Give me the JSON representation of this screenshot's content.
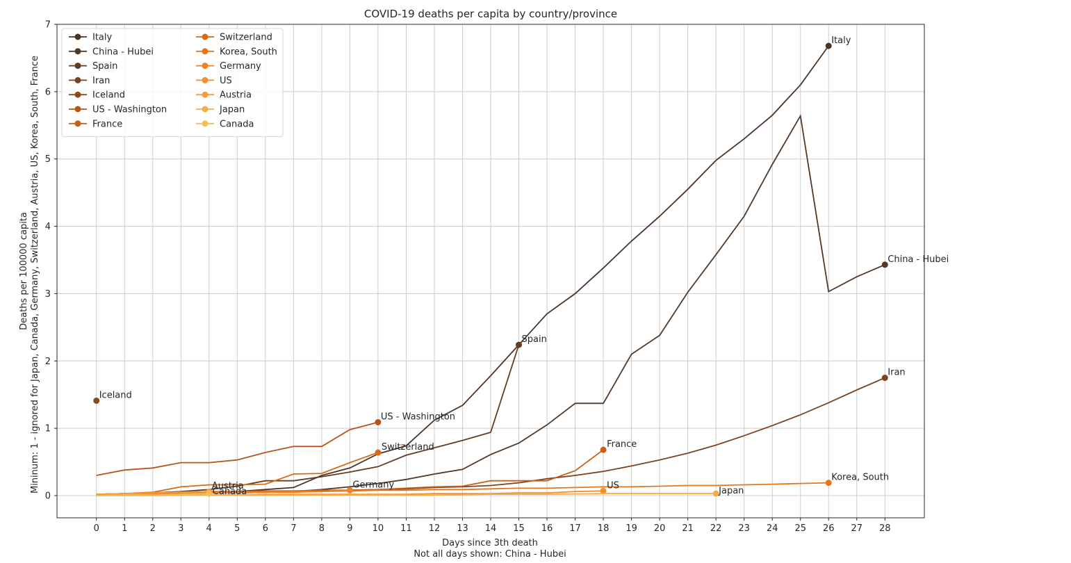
{
  "chart_data": {
    "type": "line",
    "title": "COVID-19 deaths per capita by country/province",
    "xlabel": "Days since 3th death",
    "xlabel_note": "Not all days shown: China - Hubei",
    "ylabel": "Deaths per 100000 capita",
    "ylabel_note": "Mininum: 1 - ignored for Japan, Canada, Germany, Switzerland, Austria, US, Korea, South, France",
    "xlim": [
      -1.4,
      29.4
    ],
    "ylim": [
      -0.33,
      7
    ],
    "xticks": [
      0,
      1,
      2,
      3,
      4,
      5,
      6,
      7,
      8,
      9,
      10,
      11,
      12,
      13,
      14,
      15,
      16,
      17,
      18,
      19,
      20,
      21,
      22,
      23,
      24,
      25,
      26,
      27,
      28
    ],
    "yticks": [
      0,
      1,
      2,
      3,
      4,
      5,
      6,
      7
    ],
    "grid": true,
    "legend_position": "top-left",
    "legend_columns": 2,
    "series": [
      {
        "name": "Italy",
        "color": "#4a3426",
        "x": [
          0,
          1,
          2,
          3,
          4,
          5,
          6,
          7,
          8,
          9,
          10,
          11,
          12,
          13,
          14,
          15,
          16,
          17,
          18,
          19,
          20,
          21,
          22,
          23,
          24,
          25,
          26
        ],
        "y": [
          0.01,
          0.02,
          0.03,
          0.04,
          0.05,
          0.06,
          0.09,
          0.12,
          0.3,
          0.41,
          0.62,
          0.74,
          1.12,
          1.34,
          1.78,
          2.24,
          2.7,
          3.0,
          3.38,
          3.78,
          4.15,
          4.55,
          4.98,
          5.3,
          5.65,
          6.1,
          6.68
        ],
        "label": "Italy"
      },
      {
        "name": "China - Hubei",
        "color": "#523827",
        "x": [
          0,
          1,
          2,
          3,
          4,
          5,
          6,
          7,
          8,
          9,
          10,
          11,
          12,
          13,
          14,
          15,
          16,
          17,
          18,
          19,
          20,
          21,
          22,
          23,
          24,
          25,
          26,
          27,
          28
        ],
        "y": [
          0.0,
          0.01,
          0.02,
          0.03,
          0.04,
          0.05,
          0.05,
          0.06,
          0.09,
          0.13,
          0.18,
          0.24,
          0.32,
          0.39,
          0.61,
          0.78,
          1.05,
          1.37,
          1.37,
          2.1,
          2.38,
          3.02,
          3.58,
          4.15,
          4.92,
          5.64,
          3.03,
          3.25,
          3.43
        ],
        "label": "China - Hubei"
      },
      {
        "name": "Spain",
        "color": "#623c24",
        "x": [
          0,
          1,
          2,
          3,
          4,
          5,
          6,
          7,
          8,
          9,
          10,
          11,
          12,
          13,
          14,
          15
        ],
        "y": [
          0.02,
          0.03,
          0.04,
          0.06,
          0.09,
          0.14,
          0.22,
          0.22,
          0.28,
          0.35,
          0.43,
          0.6,
          0.71,
          0.82,
          0.94,
          2.24
        ],
        "label": "Spain"
      },
      {
        "name": "Iran",
        "color": "#7a4321",
        "x": [
          0,
          1,
          2,
          3,
          4,
          5,
          6,
          7,
          8,
          9,
          10,
          11,
          12,
          13,
          14,
          15,
          16,
          17,
          18,
          19,
          20,
          21,
          22,
          23,
          24,
          25,
          26,
          27,
          28
        ],
        "y": [
          0.01,
          0.02,
          0.02,
          0.03,
          0.04,
          0.04,
          0.05,
          0.06,
          0.07,
          0.08,
          0.09,
          0.1,
          0.12,
          0.13,
          0.15,
          0.19,
          0.25,
          0.3,
          0.36,
          0.44,
          0.53,
          0.63,
          0.75,
          0.89,
          1.04,
          1.2,
          1.38,
          1.57,
          1.75
        ],
        "label": "Iran"
      },
      {
        "name": "Iceland",
        "color": "#8a4a1e",
        "x": [
          0
        ],
        "y": [
          1.41
        ],
        "label": "Iceland"
      },
      {
        "name": "US - Washington",
        "color": "#b85418",
        "x": [
          0,
          1,
          2,
          3,
          4,
          5,
          6,
          7,
          8,
          9,
          10
        ],
        "y": [
          0.3,
          0.38,
          0.41,
          0.49,
          0.49,
          0.53,
          0.64,
          0.73,
          0.73,
          0.98,
          1.09
        ],
        "label": "US - Washington"
      },
      {
        "name": "France",
        "color": "#c85f16",
        "x": [
          0,
          1,
          2,
          3,
          4,
          5,
          6,
          7,
          8,
          9,
          10,
          11,
          12,
          13,
          14,
          15,
          16,
          17,
          18
        ],
        "y": [
          0.02,
          0.03,
          0.04,
          0.05,
          0.06,
          0.06,
          0.07,
          0.07,
          0.08,
          0.08,
          0.09,
          0.11,
          0.13,
          0.14,
          0.22,
          0.22,
          0.22,
          0.37,
          0.68
        ],
        "label": "France"
      },
      {
        "name": "Switzerland",
        "color": "#d96a14",
        "x": [
          0,
          1,
          2,
          3,
          4,
          5,
          6,
          7,
          8,
          9,
          10
        ],
        "y": [
          0.02,
          0.03,
          0.05,
          0.13,
          0.16,
          0.16,
          0.17,
          0.32,
          0.33,
          0.49,
          0.64
        ],
        "label": "Switzerland"
      },
      {
        "name": "Korea, South",
        "color": "#e4771e",
        "x": [
          0,
          1,
          2,
          3,
          4,
          5,
          6,
          7,
          8,
          9,
          10,
          11,
          12,
          13,
          14,
          15,
          16,
          17,
          18,
          19,
          20,
          21,
          22,
          23,
          24,
          25,
          26
        ],
        "y": [
          0.02,
          0.03,
          0.03,
          0.04,
          0.05,
          0.05,
          0.06,
          0.06,
          0.06,
          0.07,
          0.08,
          0.08,
          0.09,
          0.09,
          0.1,
          0.11,
          0.11,
          0.12,
          0.13,
          0.13,
          0.14,
          0.15,
          0.15,
          0.16,
          0.17,
          0.18,
          0.19
        ],
        "label": "Korea, South"
      },
      {
        "name": "Germany",
        "color": "#ea8428",
        "x": [
          0,
          1,
          2,
          3,
          4,
          5,
          6,
          7,
          8,
          9
        ],
        "y": [
          0.01,
          0.02,
          0.02,
          0.03,
          0.04,
          0.04,
          0.05,
          0.05,
          0.06,
          0.08
        ],
        "label": "Germany"
      },
      {
        "name": "US",
        "color": "#ee9030",
        "x": [
          0,
          1,
          2,
          3,
          4,
          5,
          6,
          7,
          8,
          9,
          10,
          11,
          12,
          13,
          14,
          15,
          16,
          17,
          18
        ],
        "y": [
          0.01,
          0.01,
          0.01,
          0.01,
          0.01,
          0.01,
          0.02,
          0.02,
          0.02,
          0.02,
          0.02,
          0.02,
          0.03,
          0.03,
          0.03,
          0.04,
          0.04,
          0.06,
          0.07
        ],
        "label": "US"
      },
      {
        "name": "Austria",
        "color": "#f29e3c",
        "x": [
          0,
          1,
          2,
          3,
          4
        ],
        "y": [
          0.02,
          0.03,
          0.04,
          0.05,
          0.06
        ],
        "label": "Austria"
      },
      {
        "name": "Japan",
        "color": "#f4ac48",
        "x": [
          0,
          2,
          4,
          6,
          8,
          10,
          12,
          14,
          16,
          18,
          20,
          22
        ],
        "y": [
          0.0,
          0.0,
          0.01,
          0.01,
          0.01,
          0.01,
          0.01,
          0.02,
          0.02,
          0.03,
          0.03,
          0.03
        ],
        "label": "Japan"
      },
      {
        "name": "Canada",
        "color": "#f6bc58",
        "x": [
          0,
          1,
          2,
          3,
          4
        ],
        "y": [
          0.0,
          0.01,
          0.01,
          0.02,
          0.03
        ],
        "label": "Canada"
      }
    ]
  }
}
